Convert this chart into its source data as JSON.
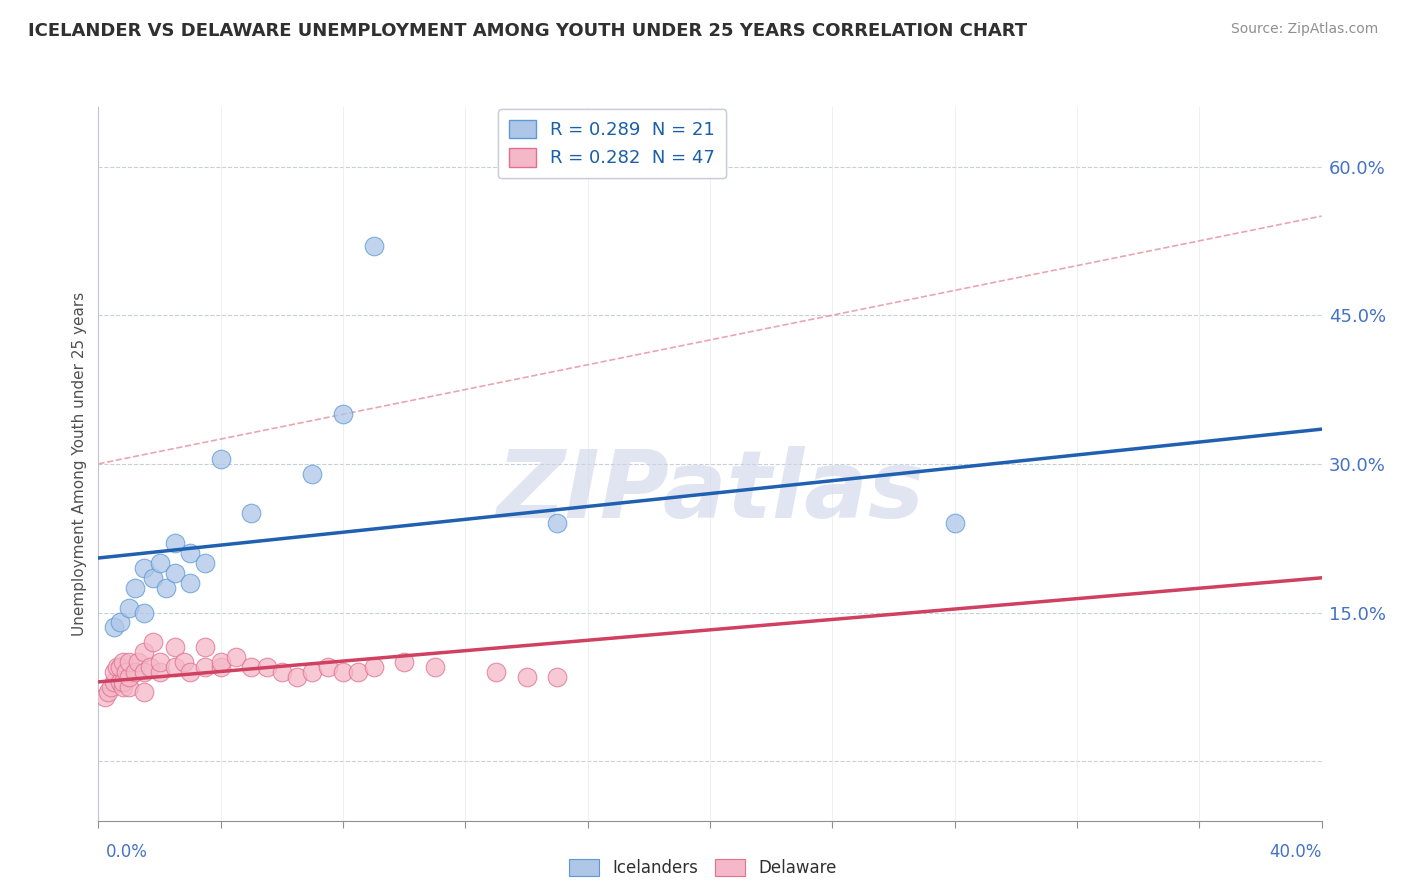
{
  "title": "ICELANDER VS DELAWARE UNEMPLOYMENT AMONG YOUTH UNDER 25 YEARS CORRELATION CHART",
  "source": "Source: ZipAtlas.com",
  "ylabel": "Unemployment Among Youth under 25 years",
  "y_ticks": [
    0.0,
    0.15,
    0.3,
    0.45,
    0.6
  ],
  "y_tick_labels": [
    "",
    "15.0%",
    "30.0%",
    "45.0%",
    "60.0%"
  ],
  "x_min": 0.0,
  "x_max": 0.4,
  "y_min": -0.06,
  "y_max": 0.66,
  "legend_entries": [
    {
      "label": "R = 0.289  N = 21",
      "color": "#aec6e8"
    },
    {
      "label": "R = 0.282  N = 47",
      "color": "#f4b8c8"
    }
  ],
  "icelanders": {
    "color": "#aec6e8",
    "edge_color": "#5a9ad5",
    "line_color": "#2060b0",
    "x": [
      0.005,
      0.007,
      0.01,
      0.012,
      0.015,
      0.015,
      0.018,
      0.02,
      0.022,
      0.025,
      0.025,
      0.03,
      0.03,
      0.035,
      0.04,
      0.05,
      0.07,
      0.08,
      0.09,
      0.15,
      0.28
    ],
    "y": [
      0.135,
      0.14,
      0.155,
      0.175,
      0.15,
      0.195,
      0.185,
      0.2,
      0.175,
      0.19,
      0.22,
      0.18,
      0.21,
      0.2,
      0.305,
      0.25,
      0.29,
      0.35,
      0.52,
      0.24,
      0.24
    ],
    "trend_x": [
      0.0,
      0.4
    ],
    "trend_y": [
      0.205,
      0.335
    ]
  },
  "delaware": {
    "color": "#f4b8c8",
    "edge_color": "#e07090",
    "line_color": "#d04060",
    "x": [
      0.002,
      0.003,
      0.004,
      0.005,
      0.005,
      0.006,
      0.007,
      0.007,
      0.008,
      0.008,
      0.008,
      0.009,
      0.01,
      0.01,
      0.01,
      0.012,
      0.013,
      0.015,
      0.015,
      0.015,
      0.017,
      0.018,
      0.02,
      0.02,
      0.025,
      0.025,
      0.028,
      0.03,
      0.035,
      0.035,
      0.04,
      0.04,
      0.045,
      0.05,
      0.055,
      0.06,
      0.065,
      0.07,
      0.075,
      0.08,
      0.085,
      0.09,
      0.1,
      0.11,
      0.13,
      0.14,
      0.15
    ],
    "y": [
      0.065,
      0.07,
      0.075,
      0.08,
      0.09,
      0.095,
      0.08,
      0.095,
      0.075,
      0.08,
      0.1,
      0.09,
      0.075,
      0.085,
      0.1,
      0.09,
      0.1,
      0.07,
      0.09,
      0.11,
      0.095,
      0.12,
      0.09,
      0.1,
      0.095,
      0.115,
      0.1,
      0.09,
      0.095,
      0.115,
      0.095,
      0.1,
      0.105,
      0.095,
      0.095,
      0.09,
      0.085,
      0.09,
      0.095,
      0.09,
      0.09,
      0.095,
      0.1,
      0.095,
      0.09,
      0.085,
      0.085
    ],
    "trend_x": [
      0.0,
      0.4
    ],
    "trend_y": [
      0.08,
      0.185
    ]
  },
  "dashed_line": {
    "x": [
      0.0,
      0.4
    ],
    "y": [
      0.3,
      0.55
    ],
    "color": "#e08090",
    "style": "--"
  },
  "watermark": "ZIPatlas",
  "watermark_color": "#ccd5e8",
  "watermark_fontsize": 68
}
